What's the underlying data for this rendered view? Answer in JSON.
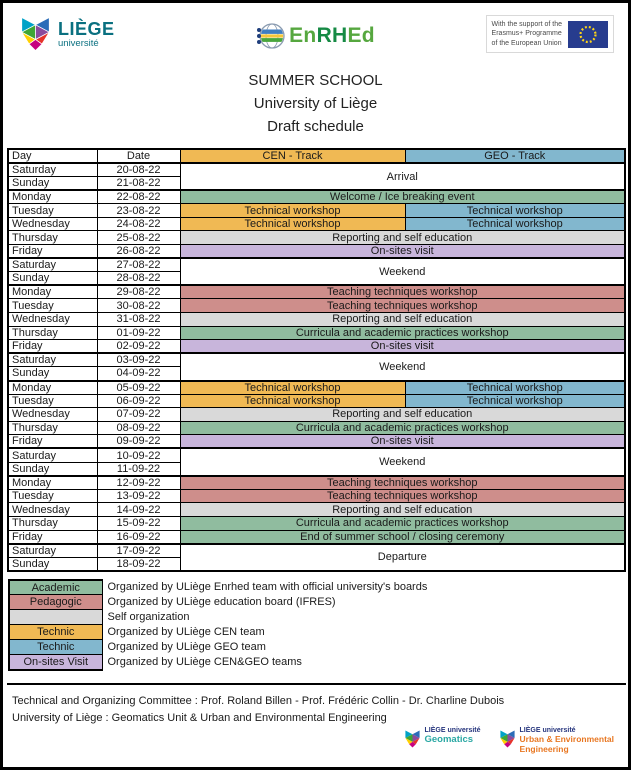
{
  "header": {
    "uliege": {
      "name": "LIÈGE",
      "sub": "université"
    },
    "enrhed": {
      "p1": "En",
      "p2": "RH",
      "p3": "Ed"
    },
    "erasmus": {
      "line1": "With the support of the",
      "line2": "Erasmus+ Programme",
      "line3": "of the European Union"
    }
  },
  "title": {
    "line1": "SUMMER SCHOOL",
    "line2": "University of Liège",
    "line3": "Draft schedule"
  },
  "colors": {
    "cen": "#F0B954",
    "geo": "#82B7CE",
    "academic": "#90BC9F",
    "pedagogic": "#CE8E8B",
    "self": "#D9D9D9",
    "visit": "#C8B5DB",
    "none": "#FFFFFF",
    "eu_blue": "#273C8E",
    "eu_stars": "#FFD617",
    "uliege_teal": "#0A7080",
    "enrhed_green": "#56A73F",
    "geomatics_teal": "#2AA8A4",
    "uee_orange": "#E87722"
  },
  "schedule": {
    "columns": [
      "Day",
      "Date",
      "CEN - Track",
      "GEO - Track"
    ],
    "rows": [
      {
        "day": "Saturday",
        "date": "20-08-22",
        "group_start": true,
        "event": {
          "text": "Arrival",
          "color": "none",
          "rowspan": 2
        }
      },
      {
        "day": "Sunday",
        "date": "21-08-22"
      },
      {
        "day": "Monday",
        "date": "22-08-22",
        "group_start": true,
        "event": {
          "text": "Welcome / Ice breaking event",
          "color": "academic"
        }
      },
      {
        "day": "Tuesday",
        "date": "23-08-22",
        "cen": {
          "text": "Technical workshop",
          "color": "cen"
        },
        "geo": {
          "text": "Technical workshop",
          "color": "geo"
        }
      },
      {
        "day": "Wednesday",
        "date": "24-08-22",
        "cen": {
          "text": "Technical workshop",
          "color": "cen"
        },
        "geo": {
          "text": "Technical workshop",
          "color": "geo"
        }
      },
      {
        "day": "Thursday",
        "date": "25-08-22",
        "event": {
          "text": "Reporting and self education",
          "color": "self"
        }
      },
      {
        "day": "Friday",
        "date": "26-08-22",
        "event": {
          "text": "On-sites visit",
          "color": "visit"
        }
      },
      {
        "day": "Saturday",
        "date": "27-08-22",
        "group_start": true,
        "event": {
          "text": "Weekend",
          "color": "none",
          "rowspan": 2
        }
      },
      {
        "day": "Sunday",
        "date": "28-08-22"
      },
      {
        "day": "Monday",
        "date": "29-08-22",
        "group_start": true,
        "event": {
          "text": "Teaching techniques workshop",
          "color": "pedagogic"
        }
      },
      {
        "day": "Tuesday",
        "date": "30-08-22",
        "event": {
          "text": "Teaching techniques workshop",
          "color": "pedagogic"
        }
      },
      {
        "day": "Wednesday",
        "date": "31-08-22",
        "event": {
          "text": "Reporting and self education",
          "color": "self"
        }
      },
      {
        "day": "Thursday",
        "date": "01-09-22",
        "event": {
          "text": "Curricula and academic practices workshop",
          "color": "academic"
        }
      },
      {
        "day": "Friday",
        "date": "02-09-22",
        "event": {
          "text": "On-sites visit",
          "color": "visit"
        }
      },
      {
        "day": "Saturday",
        "date": "03-09-22",
        "group_start": true,
        "event": {
          "text": "Weekend",
          "color": "none",
          "rowspan": 2
        }
      },
      {
        "day": "Sunday",
        "date": "04-09-22"
      },
      {
        "day": "Monday",
        "date": "05-09-22",
        "group_start": true,
        "cen": {
          "text": "Technical workshop",
          "color": "cen"
        },
        "geo": {
          "text": "Technical workshop",
          "color": "geo"
        }
      },
      {
        "day": "Tuesday",
        "date": "06-09-22",
        "cen": {
          "text": "Technical workshop",
          "color": "cen"
        },
        "geo": {
          "text": "Technical workshop",
          "color": "geo"
        }
      },
      {
        "day": "Wednesday",
        "date": "07-09-22",
        "event": {
          "text": "Reporting and self education",
          "color": "self"
        }
      },
      {
        "day": "Thursday",
        "date": "08-09-22",
        "event": {
          "text": "Curricula and academic practices workshop",
          "color": "academic"
        }
      },
      {
        "day": "Friday",
        "date": "09-09-22",
        "event": {
          "text": "On-sites visit",
          "color": "visit"
        }
      },
      {
        "day": "Saturday",
        "date": "10-09-22",
        "group_start": true,
        "event": {
          "text": "Weekend",
          "color": "none",
          "rowspan": 2
        }
      },
      {
        "day": "Sunday",
        "date": "11-09-22"
      },
      {
        "day": "Monday",
        "date": "12-09-22",
        "group_start": true,
        "event": {
          "text": "Teaching techniques workshop",
          "color": "pedagogic"
        }
      },
      {
        "day": "Tuesday",
        "date": "13-09-22",
        "event": {
          "text": "Teaching techniques workshop",
          "color": "pedagogic"
        }
      },
      {
        "day": "Wednesday",
        "date": "14-09-22",
        "event": {
          "text": "Reporting and self education",
          "color": "self"
        }
      },
      {
        "day": "Thursday",
        "date": "15-09-22",
        "event": {
          "text": "Curricula and academic practices workshop",
          "color": "academic"
        }
      },
      {
        "day": "Friday",
        "date": "16-09-22",
        "event": {
          "text": "End of summer school / closing ceremony",
          "color": "academic"
        }
      },
      {
        "day": "Saturday",
        "date": "17-09-22",
        "group_start": true,
        "event": {
          "text": "Departure",
          "color": "none",
          "rowspan": 2
        }
      },
      {
        "day": "Sunday",
        "date": "18-09-22"
      }
    ]
  },
  "legend": {
    "items": [
      {
        "label": "Academic",
        "color": "academic",
        "desc": "Organized by ULiège Enrhed team with official university's boards"
      },
      {
        "label": "Pedagogic",
        "color": "pedagogic",
        "desc": "Organized by ULiège education board (IFRES)"
      },
      {
        "label": "",
        "color": "self",
        "desc": "Self organization"
      },
      {
        "label": "Technic",
        "color": "cen",
        "desc": "Organized by ULiège CEN team"
      },
      {
        "label": "Technic",
        "color": "geo",
        "desc": "Organized by ULiège GEO team"
      },
      {
        "label": "On-sites Visit",
        "color": "visit",
        "desc": "Organized by ULiège CEN&GEO teams"
      }
    ]
  },
  "footer": {
    "line1": "Technical and Organizing Committee : Prof. Roland Billen - Prof. Frédéric Collin - Dr. Charline Dubois",
    "line2": "University of Liège : Geomatics Unit & Urban and Environmental Engineering",
    "logos": {
      "geomatics": {
        "brand": "LIÈGE université",
        "unit": "Geomatics"
      },
      "uee": {
        "brand": "LIÈGE université",
        "unit": "Urban & Environmental",
        "unit2": "Engineering"
      }
    }
  }
}
